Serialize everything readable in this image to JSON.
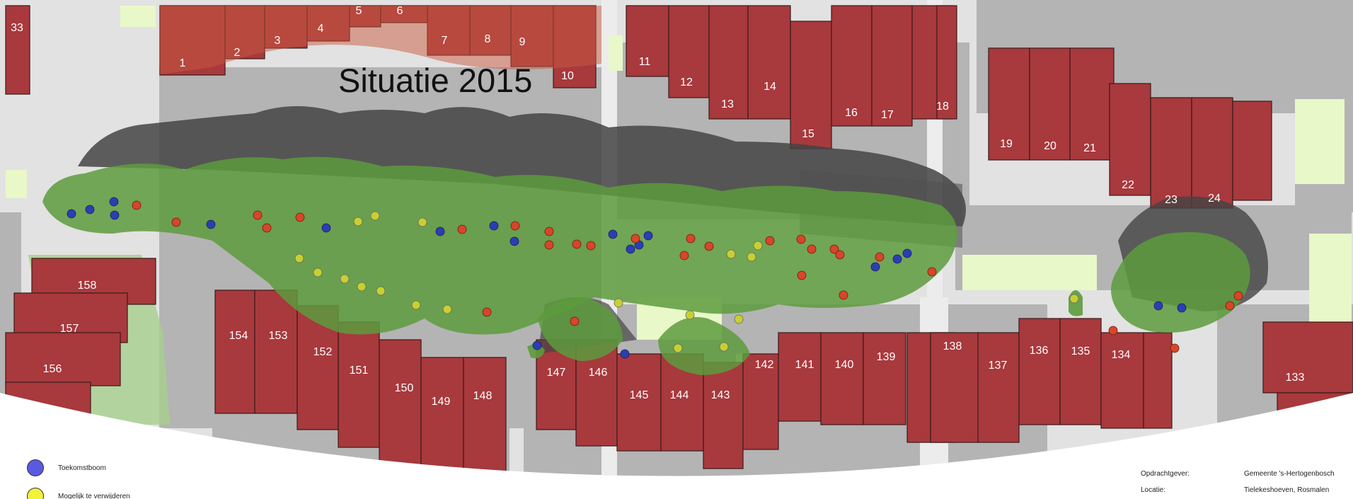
{
  "title": "Situatie 2015",
  "legend": [
    {
      "label": "Toekomstboom",
      "color": "#5a5ae0"
    },
    {
      "label": "Mogelijk te verwijderen",
      "color": "#f2f238"
    }
  ],
  "info": {
    "client_label": "Opdrachtgever:",
    "client_value": "Gemeente 's-Hertogenbosch",
    "location_label": "Locatie:",
    "location_value": "Tielekeshoeven, Rosmalen"
  },
  "colors": {
    "house": "#a8393d",
    "tree_canopy": "#5d9b3d",
    "shadow": "#444444",
    "pavement": "#b4b4b4",
    "grass": "#e8f8c8",
    "dot_blue": "#2b3fb0",
    "dot_yellow": "#c8d030",
    "dot_red": "#d8452a"
  },
  "lot_numbers": [
    "33",
    "1",
    "2",
    "3",
    "4",
    "5",
    "6",
    "7",
    "8",
    "9",
    "10",
    "11",
    "12",
    "13",
    "14",
    "15",
    "16",
    "17",
    "18",
    "19",
    "20",
    "21",
    "22",
    "23",
    "24",
    "158",
    "157",
    "156",
    "154",
    "153",
    "152",
    "151",
    "150",
    "149",
    "148",
    "147",
    "146",
    "145",
    "144",
    "143",
    "142",
    "141",
    "140",
    "139",
    "138",
    "137",
    "136",
    "135",
    "134",
    "133"
  ]
}
